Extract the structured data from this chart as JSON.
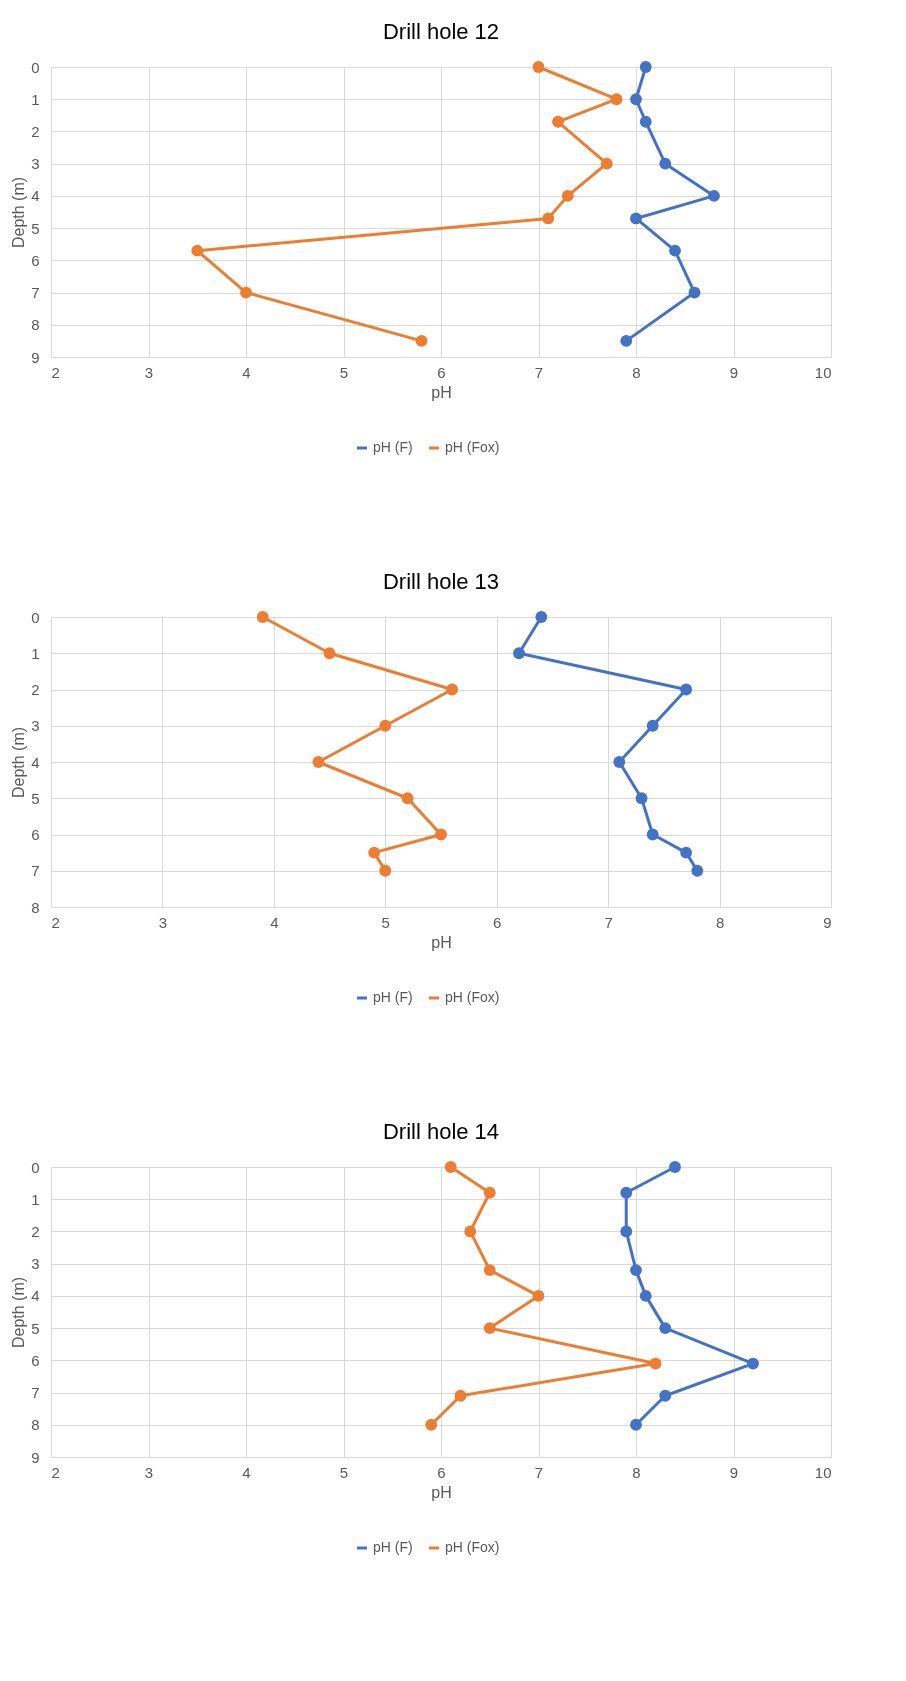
{
  "chart_data": [
    {
      "type": "line",
      "title": "Drill hole 12",
      "xlabel": "pH",
      "ylabel": "Depth (m)",
      "xlim": [
        2,
        10
      ],
      "xticks": [
        2,
        3,
        4,
        5,
        6,
        7,
        8,
        9,
        10
      ],
      "ylim": [
        9,
        0
      ],
      "yticks": [
        0,
        1,
        2,
        3,
        4,
        5,
        6,
        7,
        8,
        9
      ],
      "grid": true,
      "legend": "bottom",
      "marker": "circle",
      "line_style": "solid",
      "series": [
        {
          "name": "pH (F)",
          "color": "#4472c4",
          "x": [
            8.1,
            8.0,
            8.1,
            8.3,
            8.8,
            8.0,
            8.4,
            8.6,
            7.9
          ],
          "values": [
            0,
            1,
            1.7,
            3,
            4,
            4.7,
            5.7,
            7,
            8.5
          ]
        },
        {
          "name": "pH (Fox)",
          "color": "#ed7d31",
          "x": [
            7.0,
            7.8,
            7.2,
            7.7,
            7.3,
            7.1,
            3.5,
            4.0,
            5.8
          ],
          "values": [
            0,
            1,
            1.7,
            3,
            4,
            4.7,
            5.7,
            7,
            8.5
          ]
        }
      ]
    },
    {
      "type": "line",
      "title": "Drill hole 13",
      "xlabel": "pH",
      "ylabel": "Depth (m)",
      "xlim": [
        2,
        9
      ],
      "xticks": [
        2,
        3,
        4,
        5,
        6,
        7,
        8,
        9
      ],
      "ylim": [
        8,
        0
      ],
      "yticks": [
        0,
        1,
        2,
        3,
        4,
        5,
        6,
        7,
        8
      ],
      "grid": true,
      "legend": "bottom",
      "marker": "circle",
      "line_style": "solid",
      "series": [
        {
          "name": "pH (F)",
          "color": "#4472c4",
          "x": [
            6.4,
            6.2,
            7.7,
            7.4,
            7.1,
            7.3,
            7.4,
            7.7,
            7.8
          ],
          "values": [
            0,
            1,
            2,
            3,
            4,
            5,
            6,
            6.5,
            7
          ]
        },
        {
          "name": "pH (Fox)",
          "color": "#ed7d31",
          "x": [
            3.9,
            4.5,
            5.6,
            5.0,
            4.4,
            5.2,
            5.5,
            4.9,
            5.0
          ],
          "values": [
            0,
            1,
            2,
            3,
            4,
            5,
            6,
            6.5,
            7
          ]
        }
      ]
    },
    {
      "type": "line",
      "title": "Drill hole 14",
      "xlabel": "pH",
      "ylabel": "Depth (m)",
      "xlim": [
        2,
        10
      ],
      "xticks": [
        2,
        3,
        4,
        5,
        6,
        7,
        8,
        9,
        10
      ],
      "ylim": [
        9,
        0
      ],
      "yticks": [
        0,
        1,
        2,
        3,
        4,
        5,
        6,
        7,
        8,
        9
      ],
      "grid": true,
      "legend": "bottom",
      "marker": "circle",
      "line_style": "solid",
      "series": [
        {
          "name": "pH (F)",
          "color": "#4472c4",
          "x": [
            8.4,
            7.9,
            7.9,
            8.0,
            8.1,
            8.3,
            9.2,
            8.3,
            8.0
          ],
          "values": [
            0,
            0.8,
            2,
            3.2,
            4,
            5,
            6.1,
            7.1,
            8
          ]
        },
        {
          "name": "pH (Fox)",
          "color": "#ed7d31",
          "x": [
            6.1,
            6.5,
            6.3,
            6.5,
            7.0,
            6.5,
            8.2,
            6.2,
            5.9
          ],
          "values": [
            0,
            0.8,
            2,
            3.2,
            4,
            5,
            6.1,
            7.1,
            8
          ]
        }
      ]
    }
  ]
}
